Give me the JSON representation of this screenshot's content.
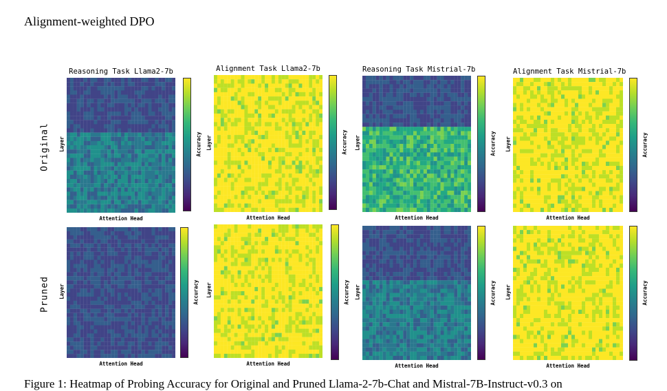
{
  "section_heading": "Alignment-weighted DPO",
  "row_labels": [
    "Original",
    "Pruned"
  ],
  "axis": {
    "x": "Attention Head",
    "y": "Layer",
    "colorbar": "Accuracy"
  },
  "caption": "Figure 1: Heatmap of Probing Accuracy for Original and Pruned Llama-2-7b-Chat and Mistral-7B-Instruct-v0.3 on",
  "colors": {
    "viridis_low": "#440154",
    "viridis_high": "#fde725"
  },
  "chart_data": [
    {
      "type": "heatmap",
      "title": "Reasoning Task Llama2-7b",
      "row": "Original",
      "rows": 32,
      "cols": 32,
      "pattern": "low-upper, medium-lower",
      "value_range": [
        0.0,
        1.0
      ]
    },
    {
      "type": "heatmap",
      "title": "Alignment Task Llama2-7b",
      "row": "Original",
      "rows": 32,
      "cols": 32,
      "pattern": "uniformly high",
      "value_range": [
        0.0,
        1.0
      ]
    },
    {
      "type": "heatmap",
      "title": "Reasoning Task Mistrial-7b",
      "row": "Original",
      "rows": 32,
      "cols": 32,
      "pattern": "low-upper, high-lower",
      "value_range": [
        0.0,
        1.0
      ]
    },
    {
      "type": "heatmap",
      "title": "Alignment Task Mistrial-7b",
      "row": "Original",
      "rows": 32,
      "cols": 32,
      "pattern": "uniformly high",
      "value_range": [
        0.0,
        1.0
      ]
    },
    {
      "type": "heatmap",
      "title": "",
      "row": "Pruned",
      "rows": 32,
      "cols": 32,
      "pattern": "uniformly low",
      "value_range": [
        0.0,
        1.0
      ]
    },
    {
      "type": "heatmap",
      "title": "",
      "row": "Pruned",
      "rows": 32,
      "cols": 32,
      "pattern": "uniformly high",
      "value_range": [
        0.0,
        1.0
      ]
    },
    {
      "type": "heatmap",
      "title": "",
      "row": "Pruned",
      "rows": 32,
      "cols": 32,
      "pattern": "low-upper, medium-lower",
      "value_range": [
        0.0,
        1.0
      ]
    },
    {
      "type": "heatmap",
      "title": "",
      "row": "Pruned",
      "rows": 32,
      "cols": 32,
      "pattern": "uniformly high",
      "value_range": [
        0.0,
        1.0
      ]
    }
  ]
}
